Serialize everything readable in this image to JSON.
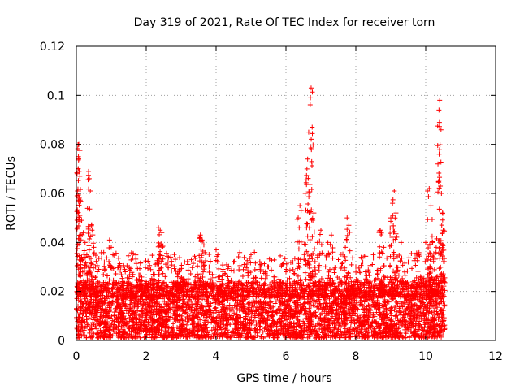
{
  "chart_data": {
    "type": "scatter",
    "title": "Day 319 of 2021, Rate Of TEC Index for receiver torn",
    "xlabel": "GPS time / hours",
    "ylabel": "ROTI / TECUs",
    "xlim": [
      0,
      12
    ],
    "ylim": [
      0,
      0.12
    ],
    "xticks": [
      0,
      2,
      4,
      6,
      8,
      10,
      12
    ],
    "xtick_labels": [
      "0",
      "2",
      "4",
      "6",
      "8",
      "10",
      "12"
    ],
    "yticks": [
      0,
      0.02,
      0.04,
      0.06,
      0.08,
      0.1,
      0.12
    ],
    "ytick_labels": [
      "0",
      "0.02",
      "0.04",
      "0.06",
      "0.08",
      "0.1",
      "0.12"
    ],
    "grid": true,
    "marker": "+",
    "series_color": "#ff0000",
    "series": [
      {
        "name": "ROTI",
        "points": [
          [
            0.02,
            0.059
          ],
          [
            0.03,
            0.061
          ],
          [
            0.05,
            0.07
          ],
          [
            0.06,
            0.075
          ],
          [
            0.07,
            0.08
          ],
          [
            0.08,
            0.069
          ],
          [
            0.1,
            0.067
          ],
          [
            0.1,
            0.051
          ],
          [
            0.15,
            0.049
          ],
          [
            0.2,
            0.044
          ],
          [
            0.25,
            0.04
          ],
          [
            0.3,
            0.035
          ],
          [
            0.35,
            0.069
          ],
          [
            0.37,
            0.066
          ],
          [
            0.4,
            0.061
          ],
          [
            0.45,
            0.045
          ],
          [
            0.5,
            0.038
          ],
          [
            0.55,
            0.03
          ],
          [
            0.6,
            0.028
          ],
          [
            0.8,
            0.032
          ],
          [
            0.95,
            0.041
          ],
          [
            1.0,
            0.038
          ],
          [
            1.05,
            0.035
          ],
          [
            1.2,
            0.03
          ],
          [
            1.4,
            0.028
          ],
          [
            1.6,
            0.026
          ],
          [
            1.8,
            0.025
          ],
          [
            2.0,
            0.024
          ],
          [
            2.2,
            0.027
          ],
          [
            2.35,
            0.046
          ],
          [
            2.4,
            0.045
          ],
          [
            2.45,
            0.044
          ],
          [
            2.6,
            0.03
          ],
          [
            2.7,
            0.034
          ],
          [
            2.9,
            0.026
          ],
          [
            3.1,
            0.032
          ],
          [
            3.2,
            0.031
          ],
          [
            3.4,
            0.026
          ],
          [
            3.55,
            0.043
          ],
          [
            3.6,
            0.041
          ],
          [
            3.65,
            0.039
          ],
          [
            3.8,
            0.03
          ],
          [
            4.0,
            0.037
          ],
          [
            4.05,
            0.035
          ],
          [
            4.2,
            0.029
          ],
          [
            4.5,
            0.032
          ],
          [
            4.8,
            0.031
          ],
          [
            5.0,
            0.035
          ],
          [
            5.2,
            0.029
          ],
          [
            5.5,
            0.03
          ],
          [
            5.8,
            0.025
          ],
          [
            6.0,
            0.028
          ],
          [
            6.2,
            0.032
          ],
          [
            6.35,
            0.05
          ],
          [
            6.4,
            0.055
          ],
          [
            6.55,
            0.06
          ],
          [
            6.6,
            0.07
          ],
          [
            6.62,
            0.074
          ],
          [
            6.65,
            0.085
          ],
          [
            6.7,
            0.099
          ],
          [
            6.72,
            0.103
          ],
          [
            6.75,
            0.087
          ],
          [
            6.8,
            0.052
          ],
          [
            6.9,
            0.04
          ],
          [
            7.0,
            0.045
          ],
          [
            7.2,
            0.04
          ],
          [
            7.3,
            0.043
          ],
          [
            7.5,
            0.033
          ],
          [
            7.7,
            0.038
          ],
          [
            7.75,
            0.05
          ],
          [
            7.8,
            0.047
          ],
          [
            8.0,
            0.03
          ],
          [
            8.2,
            0.032
          ],
          [
            8.5,
            0.035
          ],
          [
            8.7,
            0.045
          ],
          [
            8.8,
            0.038
          ],
          [
            9.0,
            0.05
          ],
          [
            9.05,
            0.056
          ],
          [
            9.1,
            0.061
          ],
          [
            9.15,
            0.052
          ],
          [
            9.3,
            0.04
          ],
          [
            9.5,
            0.032
          ],
          [
            9.8,
            0.035
          ],
          [
            10.0,
            0.04
          ],
          [
            10.05,
            0.061
          ],
          [
            10.1,
            0.062
          ],
          [
            10.15,
            0.055
          ],
          [
            10.2,
            0.04
          ],
          [
            10.3,
            0.038
          ],
          [
            10.35,
            0.072
          ],
          [
            10.38,
            0.094
          ],
          [
            10.4,
            0.098
          ],
          [
            10.42,
            0.063
          ],
          [
            10.45,
            0.06
          ],
          [
            10.48,
            0.052
          ],
          [
            10.5,
            0.045
          ]
        ],
        "baseline_cloud": {
          "x_range": [
            0,
            10.55
          ],
          "y_typical": [
            0.001,
            0.024
          ],
          "note": "dense band of points between about 0.002 and 0.025 across the full time range"
        }
      }
    ]
  }
}
